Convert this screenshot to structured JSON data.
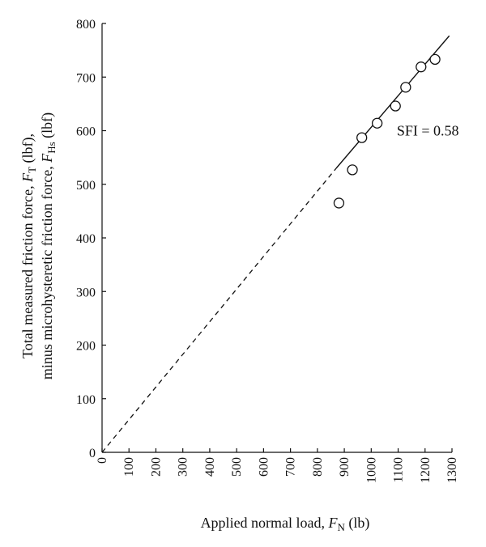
{
  "chart_data": {
    "type": "scatter",
    "xlabel_main": "Applied normal load, ",
    "xlabel_var": "F",
    "xlabel_sub": "N",
    "xlabel_unit": " (lb)",
    "ylabel_line1_main": "Total measured friction force, ",
    "ylabel_line1_var": "F",
    "ylabel_line1_sub": "T",
    "ylabel_line1_unit": " (lbf),",
    "ylabel_line2_main": "minus microhysteretic friction force, ",
    "ylabel_line2_var": "F",
    "ylabel_line2_sub": "Hs",
    "ylabel_line2_unit": " (lbf)",
    "xlim": [
      0,
      1300
    ],
    "ylim": [
      0,
      800
    ],
    "x_ticks": [
      0,
      100,
      200,
      300,
      400,
      500,
      600,
      700,
      800,
      900,
      1000,
      1100,
      1200,
      1300
    ],
    "y_ticks": [
      0,
      100,
      200,
      300,
      400,
      500,
      600,
      700,
      800
    ],
    "grid": false,
    "points": [
      {
        "x": 880,
        "y": 465
      },
      {
        "x": 930,
        "y": 527
      },
      {
        "x": 965,
        "y": 587
      },
      {
        "x": 1022,
        "y": 614
      },
      {
        "x": 1090,
        "y": 646
      },
      {
        "x": 1128,
        "y": 681
      },
      {
        "x": 1185,
        "y": 719
      },
      {
        "x": 1237,
        "y": 733
      }
    ],
    "fit_line": {
      "dashed_from": [
        0,
        0
      ],
      "dashed_to": [
        870,
        530
      ],
      "solid_from": [
        870,
        530
      ],
      "solid_to": [
        1290,
        777
      ]
    },
    "annotation": {
      "text": "SFI = 0.58",
      "x": 1095,
      "y": 600
    }
  }
}
